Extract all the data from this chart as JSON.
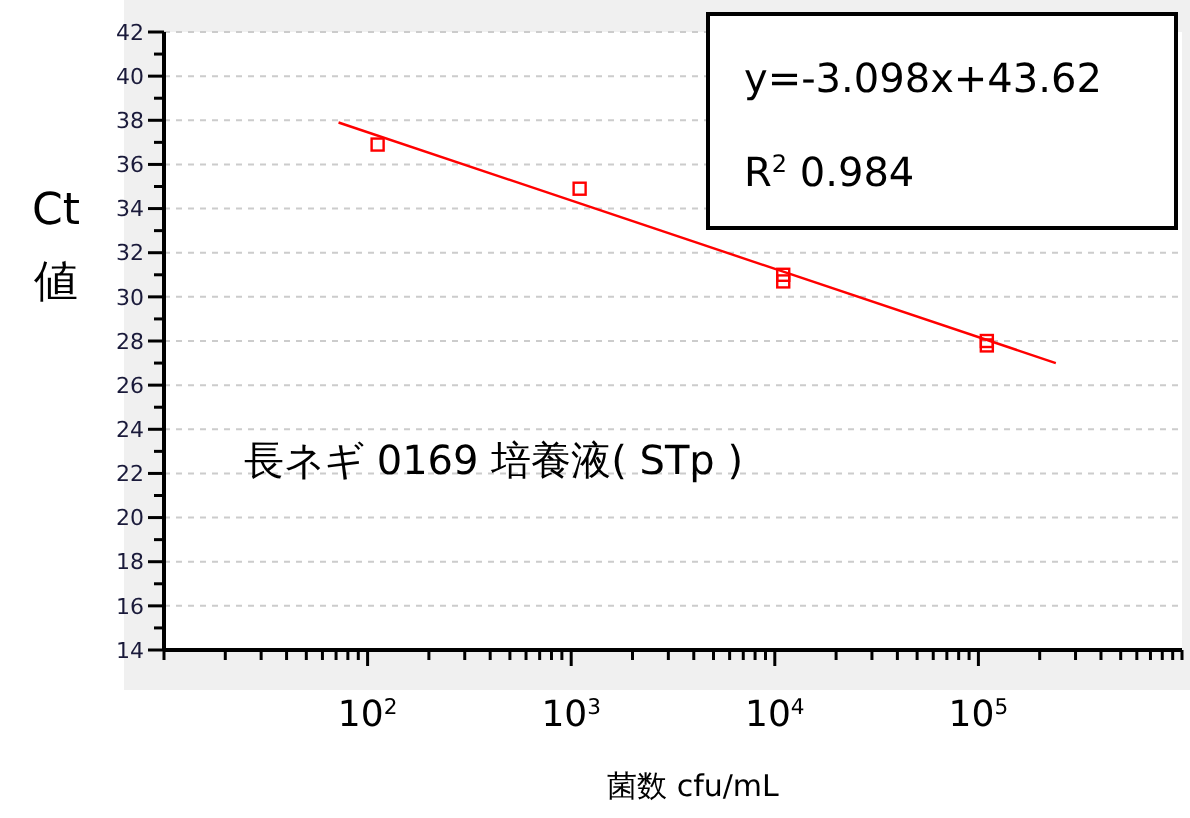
{
  "chart_data": {
    "type": "scatter",
    "xlabel": "菌数 cfu/mL",
    "ylabel": "Ct値",
    "annotations": [
      "y=-3.098x+43.62",
      "R$^{2}$ 0.984",
      "長ネギ 0169 培養液( STp )"
    ],
    "series": [
      {
        "color": "#ff0000",
        "marker": "square",
        "x": [
          112,
          1100,
          11000,
          11000,
          110000,
          110000
        ],
        "values": [
          36.9,
          34.9,
          31.0,
          30.7,
          28.0,
          27.8
        ]
      },
      {
        "type": "line",
        "color": "#ff0000",
        "marker": "none",
        "line_style": "solid",
        "x": [
          72,
          240000
        ],
        "values": [
          37.9,
          27.0
        ]
      }
    ],
    "log": "x",
    "xlim": [
      10,
      1000000
    ],
    "xticks": [
      {
        "value": 10,
        "label": null
      },
      {
        "value": 20,
        "label": null
      },
      {
        "value": 30,
        "label": null
      },
      {
        "value": 40,
        "label": null
      },
      {
        "value": 50,
        "label": null
      },
      {
        "value": 60,
        "label": null
      },
      {
        "value": 70,
        "label": null
      },
      {
        "value": 80,
        "label": null
      },
      {
        "value": 90,
        "label": null
      },
      {
        "value": 100,
        "label": "10$^{2}$"
      },
      {
        "value": 200,
        "label": null
      },
      {
        "value": 300,
        "label": null
      },
      {
        "value": 400,
        "label": null
      },
      {
        "value": 500,
        "label": null
      },
      {
        "value": 600,
        "label": null
      },
      {
        "value": 700,
        "label": null
      },
      {
        "value": 800,
        "label": null
      },
      {
        "value": 900,
        "label": null
      },
      {
        "value": 1000,
        "label": "10$^{3}$"
      },
      {
        "value": 2000,
        "label": null
      },
      {
        "value": 3000,
        "label": null
      },
      {
        "value": 4000,
        "label": null
      },
      {
        "value": 5000,
        "label": null
      },
      {
        "value": 6000,
        "label": null
      },
      {
        "value": 7000,
        "label": null
      },
      {
        "value": 8000,
        "label": null
      },
      {
        "value": 9000,
        "label": null
      },
      {
        "value": 10000,
        "label": "10$^{4}$"
      },
      {
        "value": 20000,
        "label": null
      },
      {
        "value": 30000,
        "label": null
      },
      {
        "value": 40000,
        "label": null
      },
      {
        "value": 50000,
        "label": null
      },
      {
        "value": 60000,
        "label": null
      },
      {
        "value": 70000,
        "label": null
      },
      {
        "value": 80000,
        "label": null
      },
      {
        "value": 90000,
        "label": null
      },
      {
        "value": 100000,
        "label": "10$^{5}$"
      },
      {
        "value": 200000,
        "label": null
      },
      {
        "value": 300000,
        "label": null
      },
      {
        "value": 400000,
        "label": null
      },
      {
        "value": 500000,
        "label": null
      },
      {
        "value": 600000,
        "label": null
      },
      {
        "value": 700000,
        "label": null
      },
      {
        "value": 800000,
        "label": null
      },
      {
        "value": 900000,
        "label": null
      },
      {
        "value": 1000000,
        "label": null
      }
    ],
    "ylim": [
      14,
      42
    ],
    "yticks": [
      14,
      {
        "value": 15,
        "label": null
      },
      16,
      {
        "value": 17,
        "label": null
      },
      18,
      {
        "value": 19,
        "label": null
      },
      20,
      {
        "value": 21,
        "label": null
      },
      22,
      {
        "value": 23,
        "label": null
      },
      24,
      {
        "value": 25,
        "label": null
      },
      26,
      {
        "value": 27,
        "label": null
      },
      28,
      {
        "value": 29,
        "label": null
      },
      30,
      {
        "value": 31,
        "label": null
      },
      32,
      {
        "value": 33,
        "label": null
      },
      34,
      {
        "value": 35,
        "label": null
      },
      36,
      {
        "value": 37,
        "label": null
      },
      38,
      {
        "value": 39,
        "label": null
      },
      40,
      {
        "value": 41,
        "label": null
      },
      42
    ],
    "grid": "y"
  }
}
